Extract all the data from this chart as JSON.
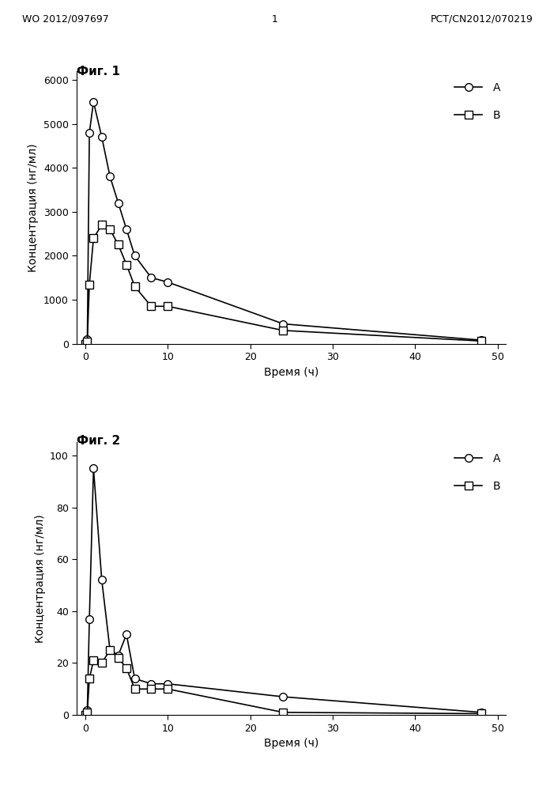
{
  "fig1_title": "Фиг. 1",
  "fig2_title": "Фиг. 2",
  "header_left": "WO 2012/097697",
  "header_center": "1",
  "header_right": "PCT/CN2012/070219",
  "ylabel": "Концентрация (нг/мл)",
  "xlabel": "Время (ч)",
  "legend_A": "А",
  "legend_B": "В",
  "fig1_A_x": [
    0,
    0.25,
    0.5,
    1,
    2,
    3,
    4,
    5,
    6,
    8,
    10,
    24,
    48
  ],
  "fig1_A_y": [
    0,
    100,
    4800,
    5500,
    4700,
    3800,
    3200,
    2600,
    2000,
    1500,
    1400,
    450,
    80
  ],
  "fig1_B_x": [
    0,
    0.25,
    0.5,
    1,
    2,
    3,
    4,
    5,
    6,
    8,
    10,
    24,
    48
  ],
  "fig1_B_y": [
    0,
    50,
    1350,
    2400,
    2700,
    2600,
    2250,
    1800,
    1300,
    850,
    850,
    300,
    60
  ],
  "fig2_A_x": [
    0,
    0.25,
    0.5,
    1,
    2,
    3,
    4,
    5,
    6,
    8,
    10,
    24,
    48
  ],
  "fig2_A_y": [
    0,
    2,
    37,
    95,
    52,
    25,
    23,
    31,
    14,
    12,
    12,
    7,
    1
  ],
  "fig2_B_x": [
    0,
    0.25,
    0.5,
    1,
    2,
    3,
    4,
    5,
    6,
    8,
    10,
    24,
    48
  ],
  "fig2_B_y": [
    0,
    1,
    14,
    21,
    20,
    25,
    22,
    18,
    10,
    10,
    10,
    1,
    0.5
  ],
  "fig1_ylim": [
    0,
    6200
  ],
  "fig1_yticks": [
    0,
    1000,
    2000,
    3000,
    4000,
    5000,
    6000
  ],
  "fig2_ylim": [
    0,
    105
  ],
  "fig2_yticks": [
    0,
    20,
    40,
    60,
    80,
    100
  ],
  "xticks": [
    0,
    10,
    20,
    30,
    40,
    50
  ],
  "xlim": [
    -1,
    51
  ],
  "bg_color": "#ffffff",
  "line_color": "#000000",
  "marker_circle": "o",
  "marker_square": "s",
  "markersize": 7,
  "linewidth": 1.2,
  "fontsize_label": 10,
  "fontsize_tick": 9,
  "fontsize_title": 11,
  "fontsize_header": 9
}
